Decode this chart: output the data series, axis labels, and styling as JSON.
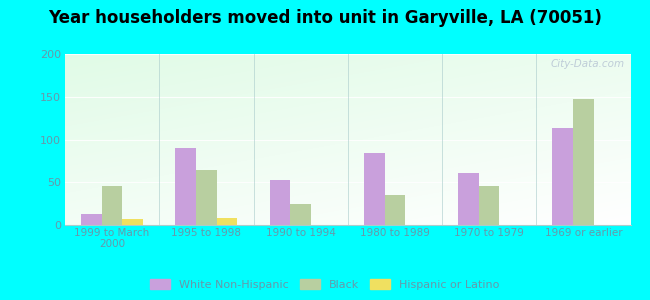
{
  "title": "Year householders moved into unit in Garyville, LA (70051)",
  "categories": [
    "1999 to March\n2000",
    "1995 to 1998",
    "1990 to 1994",
    "1980 to 1989",
    "1970 to 1979",
    "1969 or earlier"
  ],
  "white_non_hispanic": [
    13,
    90,
    53,
    84,
    61,
    114
  ],
  "black": [
    46,
    64,
    25,
    35,
    46,
    147
  ],
  "hispanic_or_latino": [
    7,
    8,
    0,
    0,
    0,
    0
  ],
  "bar_colors": {
    "white_non_hispanic": "#c9a0dc",
    "black": "#b8cfa0",
    "hispanic_or_latino": "#f0e060"
  },
  "ylim": [
    0,
    200
  ],
  "yticks": [
    0,
    50,
    100,
    150,
    200
  ],
  "background_color": "#00ffff",
  "watermark": "City-Data.com",
  "legend_labels": [
    "White Non-Hispanic",
    "Black",
    "Hispanic or Latino"
  ],
  "tick_color": "#6699aa",
  "title_fontsize": 12
}
